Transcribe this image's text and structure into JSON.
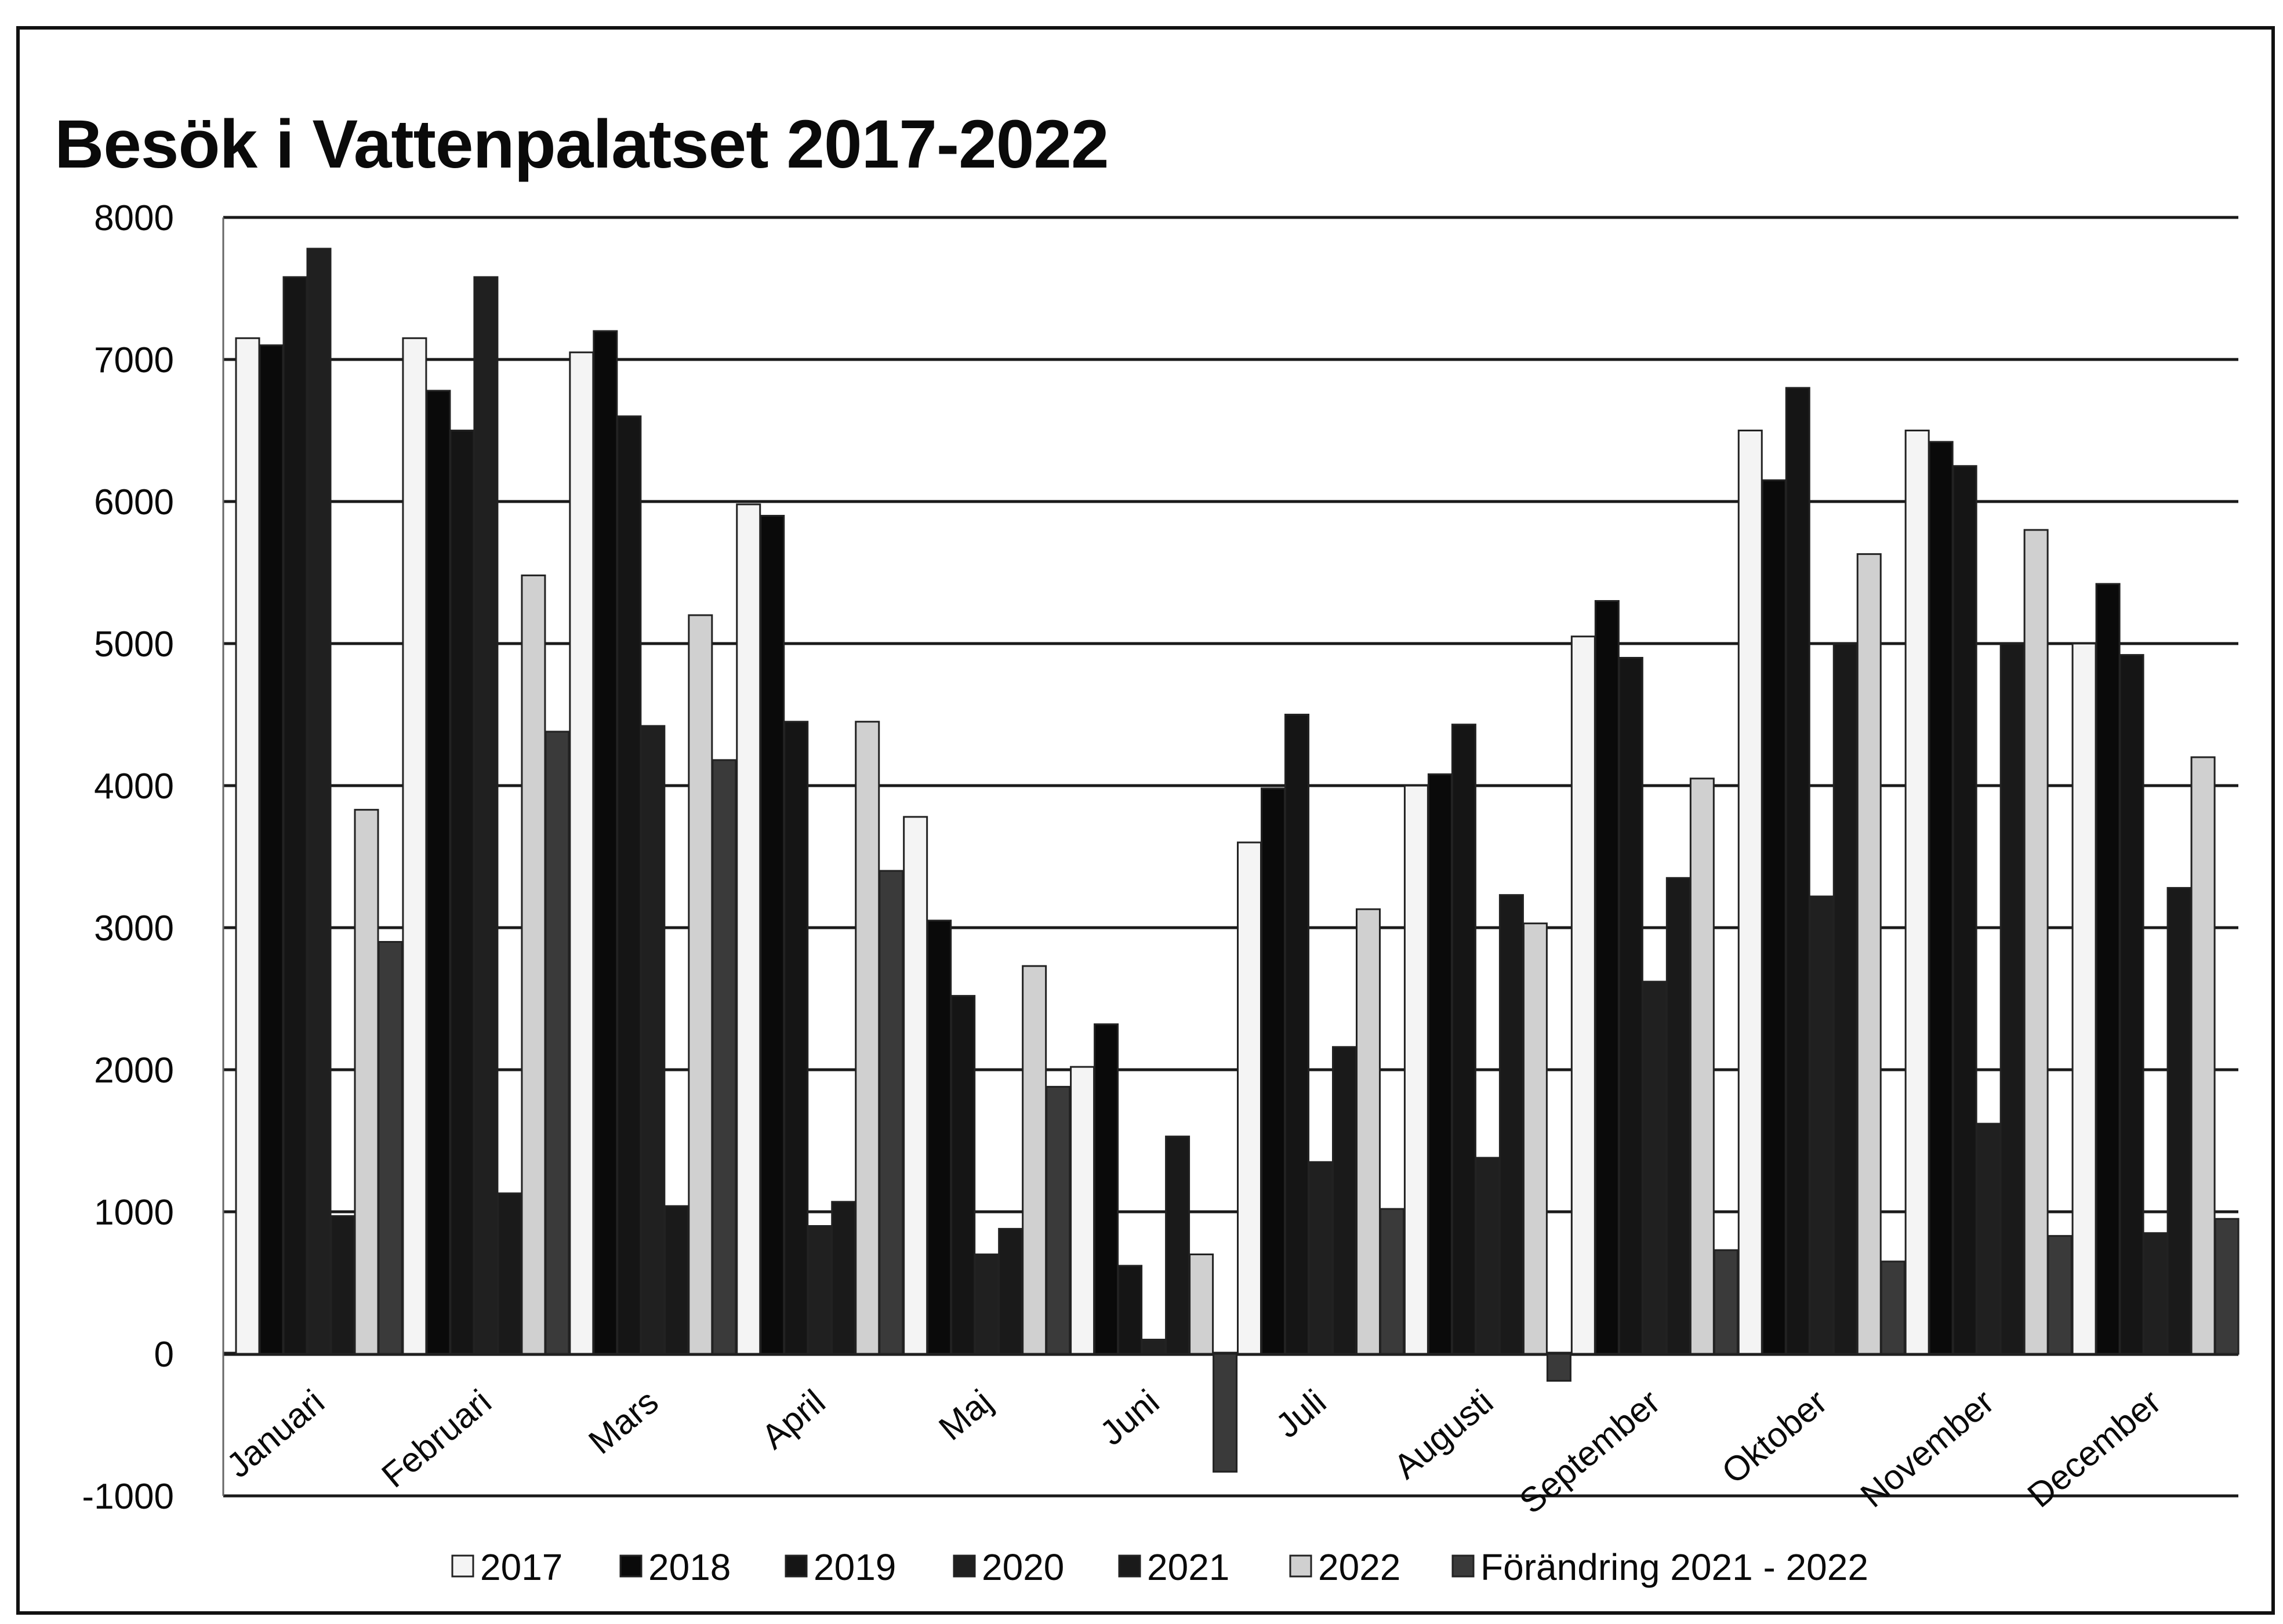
{
  "chart_data": {
    "type": "bar",
    "title": "Besök i Vattenpalatset 2017-2022",
    "xlabel": "",
    "ylabel": "",
    "ylim": [
      -1000,
      8000
    ],
    "yticks": [
      8000,
      7000,
      6000,
      5000,
      4000,
      3000,
      2000,
      1000,
      0,
      -1000
    ],
    "grid": true,
    "legend_position": "bottom",
    "categories": [
      "Januari",
      "Februari",
      "Mars",
      "April",
      "Maj",
      "Juni",
      "Juli",
      "Augusti",
      "September",
      "Oktober",
      "November",
      "December"
    ],
    "series": [
      {
        "name": "2017",
        "color": "#f4f4f4",
        "values": [
          7150,
          7150,
          7050,
          5980,
          3780,
          2020,
          3600,
          4000,
          5050,
          6500,
          6500,
          5000
        ]
      },
      {
        "name": "2018",
        "color": "#0a0a0a",
        "values": [
          7100,
          6780,
          7200,
          5900,
          3050,
          2320,
          3980,
          4080,
          5300,
          6150,
          6420,
          5420
        ]
      },
      {
        "name": "2019",
        "color": "#151515",
        "values": [
          7580,
          6500,
          6600,
          4450,
          2520,
          620,
          4500,
          4430,
          4900,
          6800,
          6250,
          4920
        ]
      },
      {
        "name": "2020",
        "color": "#202020",
        "values": [
          7780,
          7580,
          4420,
          900,
          700,
          100,
          1350,
          1380,
          2620,
          3220,
          1620,
          850
        ]
      },
      {
        "name": "2021",
        "color": "#1a1a1a",
        "values": [
          970,
          1130,
          1040,
          1070,
          880,
          1530,
          2160,
          3230,
          3350,
          5000,
          5000,
          3280
        ]
      },
      {
        "name": "2022",
        "color": "#d0d0d0",
        "values": [
          3830,
          5480,
          5200,
          4450,
          2730,
          700,
          3130,
          3030,
          4050,
          5630,
          5800,
          4200
        ]
      },
      {
        "name": "Förändring 2021 - 2022",
        "color": "#3a3a3a",
        "values": [
          2900,
          4380,
          4180,
          3400,
          1880,
          -830,
          1020,
          -190,
          730,
          650,
          830,
          950
        ]
      }
    ]
  }
}
